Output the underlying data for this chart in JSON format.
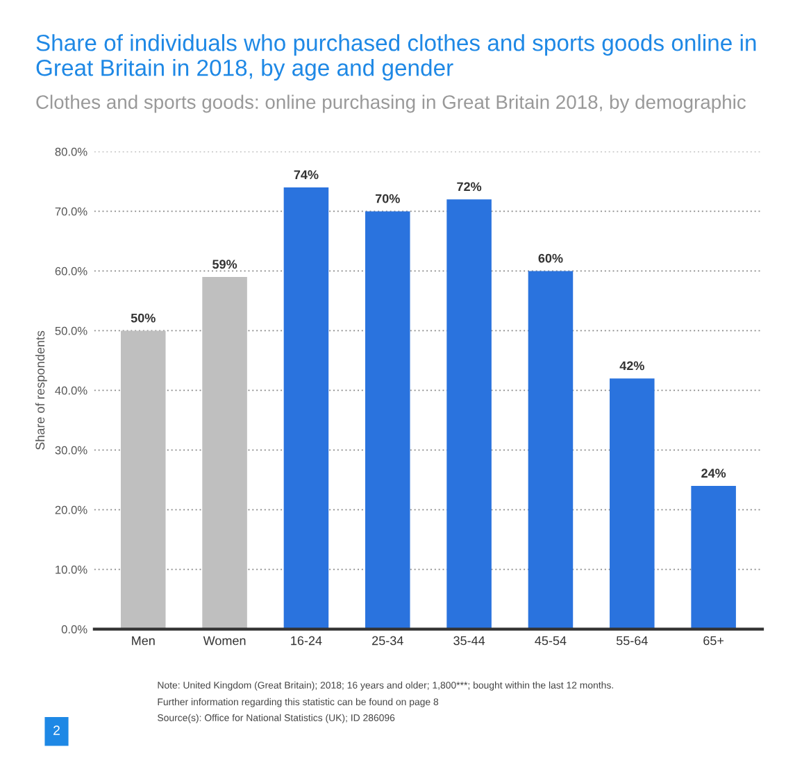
{
  "chart_data": {
    "type": "bar",
    "title": "Share of individuals who purchased clothes and sports goods online in Great Britain in 2018, by age and gender",
    "subtitle": "Clothes and sports goods: online purchasing in Great Britain 2018, by demographic",
    "ylabel": "Share of respondents",
    "categories": [
      "Men",
      "Women",
      "16-24",
      "25-34",
      "35-44",
      "45-54",
      "55-64",
      "65+"
    ],
    "values": [
      50,
      59,
      74,
      70,
      72,
      60,
      42,
      24
    ],
    "colors": [
      "#bfbfbf",
      "#bfbfbf",
      "#2a73de",
      "#2a73de",
      "#2a73de",
      "#2a73de",
      "#2a73de",
      "#2a73de"
    ],
    "value_labels": [
      "50%",
      "59%",
      "74%",
      "70%",
      "72%",
      "60%",
      "42%",
      "24%"
    ],
    "ylim": [
      0,
      80
    ],
    "yticks": [
      {
        "value": 0,
        "label": "0.0%"
      },
      {
        "value": 10,
        "label": "10.0%"
      },
      {
        "value": 20,
        "label": "20.0%"
      },
      {
        "value": 30,
        "label": "30.0%"
      },
      {
        "value": 40,
        "label": "40.0%"
      },
      {
        "value": 50,
        "label": "50.0%"
      },
      {
        "value": 60,
        "label": "60.0%"
      },
      {
        "value": 70,
        "label": "70.0%"
      },
      {
        "value": 80,
        "label": "80.0%"
      }
    ],
    "grid": "y",
    "annotations": [
      "Note: United Kingdom (Great Britain); 2018; 16 years and older; 1,800***; bought within the last 12 months.",
      "Further information regarding this statistic can be found on page 8",
      "Source(s): Office for National Statistics (UK); ID 286096",
      "2"
    ]
  }
}
